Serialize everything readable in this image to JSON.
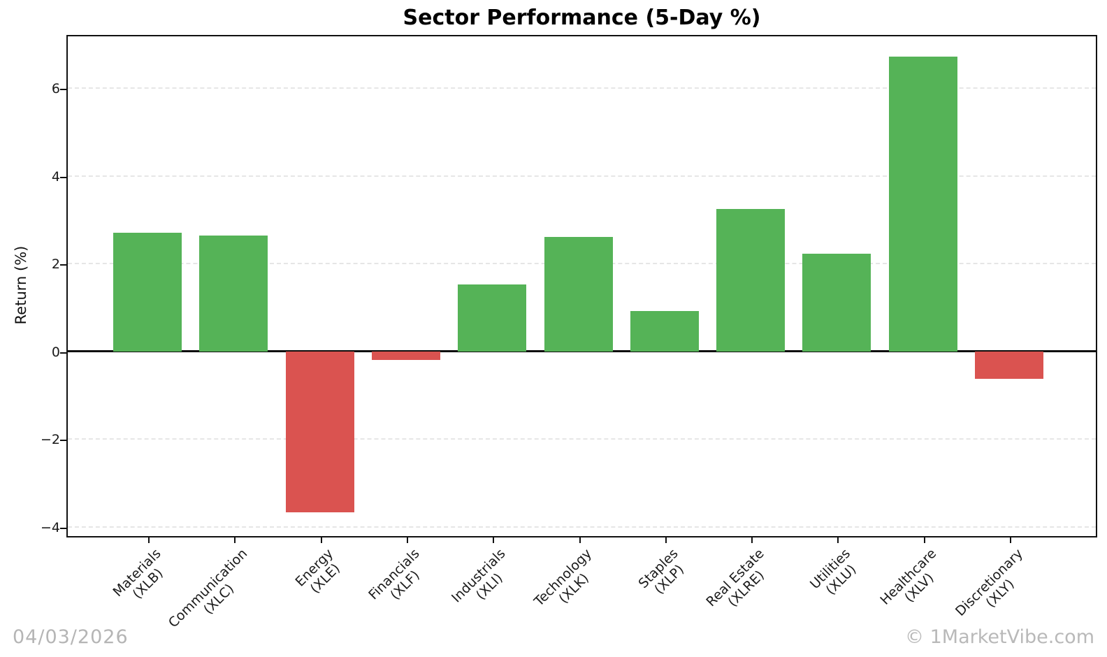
{
  "chart_data": {
    "type": "bar",
    "title": "Sector Performance (5-Day %)",
    "xlabel": "",
    "ylabel": "Return (%)",
    "categories": [
      {
        "name": "Materials",
        "ticker": "(XLB)"
      },
      {
        "name": "Communication",
        "ticker": "(XLC)"
      },
      {
        "name": "Energy",
        "ticker": "(XLE)"
      },
      {
        "name": "Financials",
        "ticker": "(XLF)"
      },
      {
        "name": "Industrials",
        "ticker": "(XLI)"
      },
      {
        "name": "Technology",
        "ticker": "(XLK)"
      },
      {
        "name": "Staples",
        "ticker": "(XLP)"
      },
      {
        "name": "Real Estate",
        "ticker": "(XLRE)"
      },
      {
        "name": "Utilities",
        "ticker": "(XLU)"
      },
      {
        "name": "Healthcare",
        "ticker": "(XLV)"
      },
      {
        "name": "Discretionary",
        "ticker": "(XLY)"
      }
    ],
    "values": [
      2.7,
      2.64,
      -3.67,
      -0.2,
      1.52,
      2.61,
      0.91,
      3.25,
      2.23,
      6.72,
      -0.62
    ],
    "ylim": [
      -4.18,
      7.21
    ],
    "yticks": [
      6,
      4,
      2,
      0,
      -2,
      -4
    ],
    "ytick_labels": [
      "6",
      "4",
      "2",
      "0",
      "−2",
      "−4"
    ],
    "grid": "horizontal-dashed",
    "legend": "none",
    "zero_line": true,
    "colors": {
      "positive": "#55b357",
      "negative": "#da5350",
      "gridline": "#e6e6e6",
      "spine": "#111111",
      "watermark_gray": "#b5b5b5"
    }
  },
  "footer": {
    "date": "04/03/2026",
    "watermark": "© 1MarketVibe.com"
  }
}
